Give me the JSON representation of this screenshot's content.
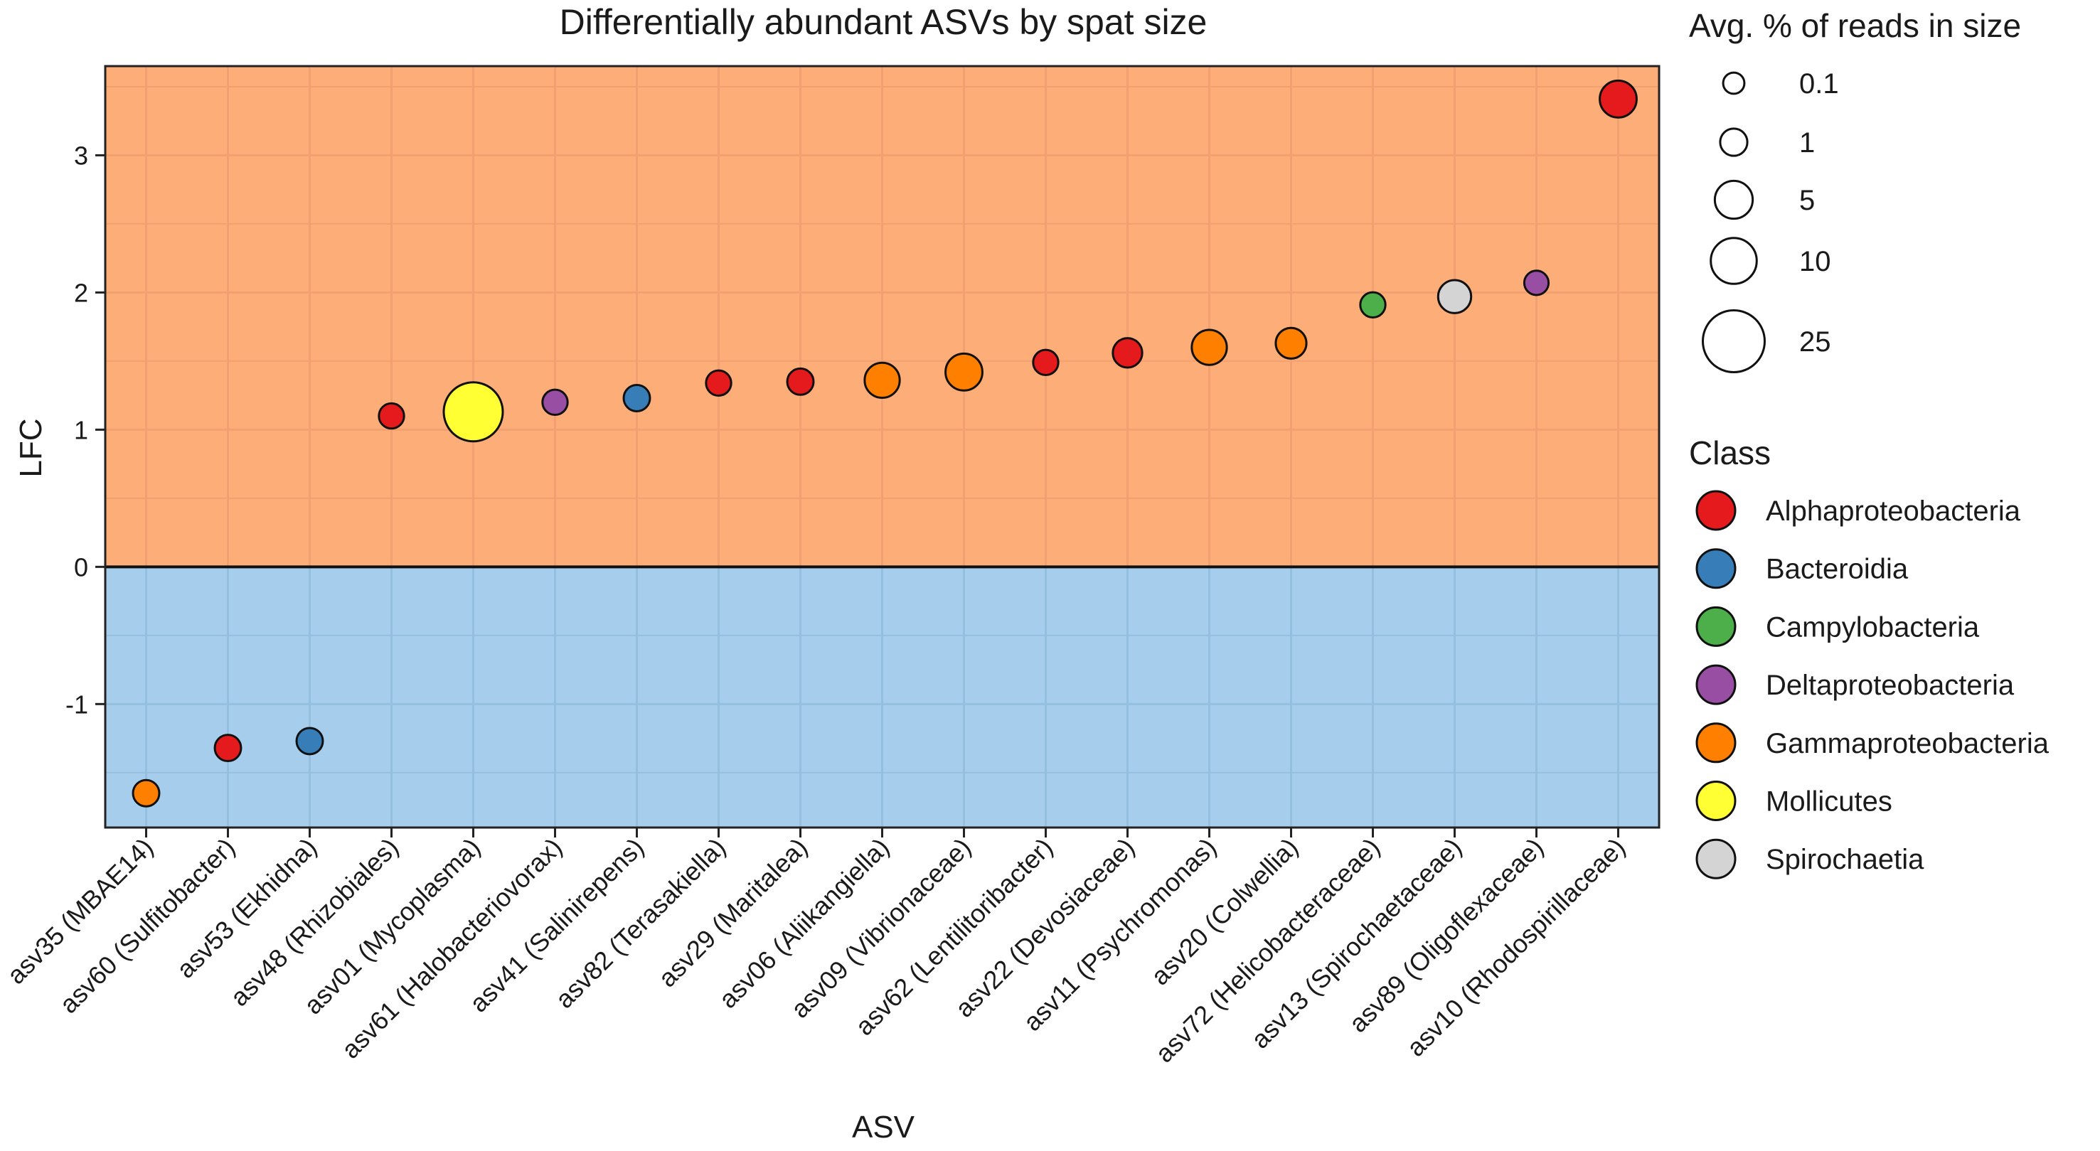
{
  "chart_data": {
    "type": "scatter",
    "title": "Differentially abundant ASVs by spat size",
    "xlabel": "ASV",
    "ylabel": "LFC",
    "ylim": [
      -1.9,
      3.65
    ],
    "yticks": [
      -1,
      0,
      1,
      2,
      3
    ],
    "yticklabels": [
      "-1",
      "0",
      "1",
      "2",
      "3"
    ],
    "grid": true,
    "background_regions": [
      {
        "name": "positive",
        "from": 0,
        "to": 3.65,
        "color": "#FDAE78"
      },
      {
        "name": "negative",
        "from": -1.9,
        "to": 0,
        "color": "#A6CEEC"
      }
    ],
    "categories": [
      "asv35 (MBAE14)",
      "asv60 (Sulfitobacter)",
      "asv53 (Ekhidna)",
      "asv48 (Rhizobiales)",
      "asv01 (Mycoplasma)",
      "asv61 (Halobacteriovorax)",
      "asv41 (Salinirepens)",
      "asv82 (Terasakiella)",
      "asv29 (Maritalea)",
      "asv06 (Aliikangiella)",
      "asv09 (Vibrionaceae)",
      "asv62 (Lentilitoribacter)",
      "asv22 (Devosiaceae)",
      "asv11 (Psychromonas)",
      "asv20 (Colwellia)",
      "asv72 (Helicobacteraceae)",
      "asv13 (Spirochaetaceae)",
      "asv89 (Oligoflexaceae)",
      "asv10 (Rhodospirillaceae)"
    ],
    "points": [
      {
        "asv": "asv35 (MBAE14)",
        "lfc": -1.65,
        "size": 1.5,
        "class": "Gammaproteobacteria"
      },
      {
        "asv": "asv60 (Sulfitobacter)",
        "lfc": -1.32,
        "size": 1.5,
        "class": "Alphaproteobacteria"
      },
      {
        "asv": "asv53 (Ekhidna)",
        "lfc": -1.27,
        "size": 1.5,
        "class": "Bacteroidia"
      },
      {
        "asv": "asv48 (Rhizobiales)",
        "lfc": 1.1,
        "size": 1.2,
        "class": "Alphaproteobacteria"
      },
      {
        "asv": "asv01 (Mycoplasma)",
        "lfc": 1.13,
        "size": 25,
        "class": "Mollicutes"
      },
      {
        "asv": "asv61 (Halobacteriovorax)",
        "lfc": 1.2,
        "size": 1.2,
        "class": "Deltaproteobacteria"
      },
      {
        "asv": "asv41 (Salinirepens)",
        "lfc": 1.23,
        "size": 1.5,
        "class": "Bacteroidia"
      },
      {
        "asv": "asv82 (Terasakiella)",
        "lfc": 1.34,
        "size": 1.2,
        "class": "Alphaproteobacteria"
      },
      {
        "asv": "asv29 (Maritalea)",
        "lfc": 1.35,
        "size": 1.5,
        "class": "Alphaproteobacteria"
      },
      {
        "asv": "asv06 (Aliikangiella)",
        "lfc": 1.36,
        "size": 5,
        "class": "Gammaproteobacteria"
      },
      {
        "asv": "asv09 (Vibrionaceae)",
        "lfc": 1.42,
        "size": 6,
        "class": "Gammaproteobacteria"
      },
      {
        "asv": "asv62 (Lentilitoribacter)",
        "lfc": 1.49,
        "size": 1.2,
        "class": "Alphaproteobacteria"
      },
      {
        "asv": "asv22 (Devosiaceae)",
        "lfc": 1.56,
        "size": 2.5,
        "class": "Alphaproteobacteria"
      },
      {
        "asv": "asv11 (Psychromonas)",
        "lfc": 1.6,
        "size": 5,
        "class": "Gammaproteobacteria"
      },
      {
        "asv": "asv20 (Colwellia)",
        "lfc": 1.63,
        "size": 3,
        "class": "Gammaproteobacteria"
      },
      {
        "asv": "asv72 (Helicobacteraceae)",
        "lfc": 1.91,
        "size": 1.2,
        "class": "Campylobacteria"
      },
      {
        "asv": "asv13 (Spirochaetaceae)",
        "lfc": 1.97,
        "size": 4,
        "class": "Spirochaetia"
      },
      {
        "asv": "asv89 (Oligoflexaceae)",
        "lfc": 2.07,
        "size": 1.0,
        "class": "Deltaproteobacteria"
      },
      {
        "asv": "asv10 (Rhodospirillaceae)",
        "lfc": 3.41,
        "size": 6,
        "class": "Alphaproteobacteria"
      }
    ],
    "size_legend": {
      "title": "Avg. % of reads in size",
      "items": [
        {
          "label": "0.1",
          "value": 0.1
        },
        {
          "label": "1",
          "value": 1
        },
        {
          "label": "5",
          "value": 5
        },
        {
          "label": "10",
          "value": 10
        },
        {
          "label": "25",
          "value": 25
        }
      ]
    },
    "class_legend": {
      "title": "Class",
      "items": [
        {
          "label": "Alphaproteobacteria",
          "color": "#E41A1C"
        },
        {
          "label": "Bacteroidia",
          "color": "#377EB8"
        },
        {
          "label": "Campylobacteria",
          "color": "#4DAF4A"
        },
        {
          "label": "Deltaproteobacteria",
          "color": "#984EA3"
        },
        {
          "label": "Gammaproteobacteria",
          "color": "#FF7F00"
        },
        {
          "label": "Mollicutes",
          "color": "#FFFF33"
        },
        {
          "label": "Spirochaetia",
          "color": "#D4D4D4"
        }
      ]
    },
    "legend_position": "right"
  }
}
